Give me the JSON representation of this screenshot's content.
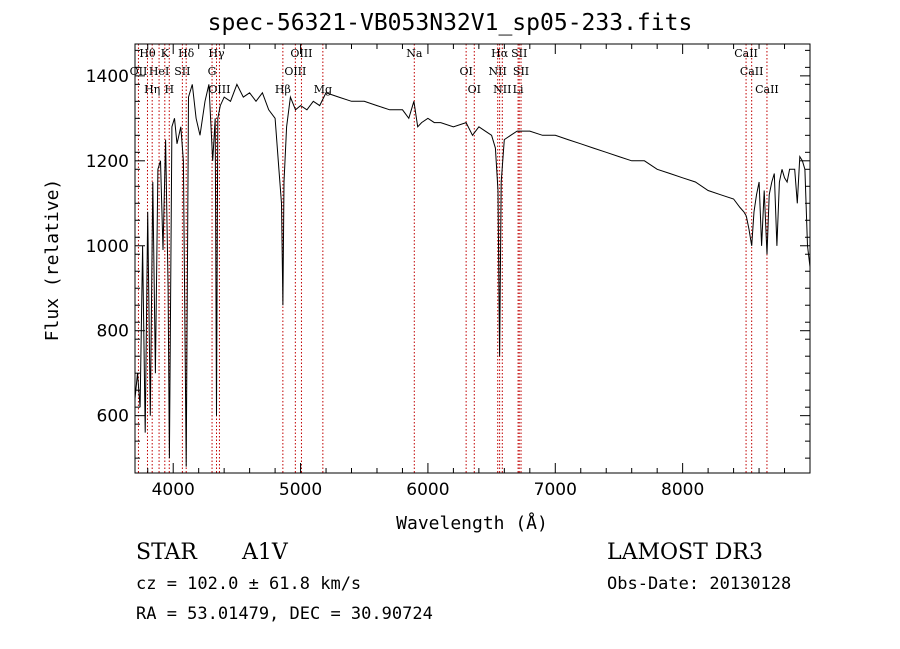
{
  "chart_data": {
    "type": "line",
    "title": "spec-56321-VB053N32V1_sp05-233.fits",
    "xlabel": "Wavelength (Å)",
    "ylabel": "Flux (relative)",
    "xlim": [
      3700,
      9000
    ],
    "ylim": [
      465,
      1475
    ],
    "xticks": [
      4000,
      5000,
      6000,
      7000,
      8000
    ],
    "yticks": [
      600,
      800,
      1000,
      1200,
      1400
    ],
    "grid": false,
    "series": [
      {
        "name": "spectrum",
        "x": [
          3700,
          3720,
          3740,
          3760,
          3780,
          3800,
          3820,
          3840,
          3860,
          3880,
          3900,
          3920,
          3940,
          3960,
          3970,
          3990,
          4010,
          4030,
          4060,
          4080,
          4102,
          4120,
          4150,
          4180,
          4210,
          4250,
          4280,
          4310,
          4330,
          4340,
          4350,
          4370,
          4400,
          4450,
          4500,
          4550,
          4600,
          4650,
          4700,
          4750,
          4800,
          4830,
          4850,
          4861,
          4870,
          4890,
          4920,
          4960,
          5000,
          5050,
          5100,
          5150,
          5200,
          5300,
          5400,
          5500,
          5600,
          5700,
          5800,
          5850,
          5890,
          5920,
          5950,
          6000,
          6050,
          6100,
          6200,
          6300,
          6350,
          6400,
          6450,
          6500,
          6530,
          6550,
          6563,
          6575,
          6600,
          6650,
          6700,
          6750,
          6800,
          6900,
          7000,
          7100,
          7200,
          7300,
          7400,
          7500,
          7600,
          7700,
          7800,
          7900,
          8000,
          8100,
          8200,
          8300,
          8400,
          8450,
          8480,
          8500,
          8520,
          8542,
          8560,
          8580,
          8600,
          8620,
          8640,
          8662,
          8680,
          8700,
          8720,
          8740,
          8760,
          8780,
          8800,
          8820,
          8840,
          8860,
          8880,
          8900,
          8920,
          8940,
          8960,
          8980,
          9000
        ],
        "values": [
          640,
          700,
          620,
          1000,
          560,
          1080,
          600,
          1150,
          700,
          1180,
          1200,
          990,
          1250,
          900,
          500,
          1280,
          1300,
          1240,
          1280,
          1200,
          480,
          1350,
          1380,
          1300,
          1260,
          1340,
          1380,
          1200,
          1300,
          600,
          1300,
          1330,
          1350,
          1340,
          1380,
          1350,
          1360,
          1340,
          1360,
          1320,
          1300,
          1180,
          1100,
          860,
          1150,
          1280,
          1350,
          1320,
          1330,
          1320,
          1340,
          1330,
          1360,
          1350,
          1340,
          1340,
          1330,
          1320,
          1320,
          1300,
          1340,
          1280,
          1290,
          1300,
          1290,
          1290,
          1280,
          1290,
          1260,
          1280,
          1270,
          1260,
          1230,
          1130,
          740,
          1150,
          1250,
          1260,
          1270,
          1270,
          1270,
          1260,
          1260,
          1250,
          1240,
          1230,
          1220,
          1210,
          1200,
          1200,
          1180,
          1170,
          1160,
          1150,
          1130,
          1120,
          1110,
          1090,
          1080,
          1070,
          1040,
          1000,
          1080,
          1120,
          1150,
          1000,
          1130,
          980,
          1120,
          1150,
          1170,
          1000,
          1150,
          1180,
          1160,
          1150,
          1180,
          1180,
          1180,
          1100,
          1210,
          1200,
          1180,
          1000,
          950
        ]
      }
    ],
    "lines": [
      {
        "label": "Hθ",
        "lambda": 3798
      },
      {
        "label": "OII",
        "lambda": 3727
      },
      {
        "label": "Hη",
        "lambda": 3835
      },
      {
        "label": "K",
        "lambda": 3934
      },
      {
        "label": "HeI",
        "lambda": 3889
      },
      {
        "label": "H",
        "lambda": 3969
      },
      {
        "label": "Hδ",
        "lambda": 4102
      },
      {
        "label": "SII",
        "lambda": 4072
      },
      {
        "label": "OIII",
        "lambda": 4363
      },
      {
        "label": "Hγ",
        "lambda": 4340
      },
      {
        "label": "G",
        "lambda": 4305
      },
      {
        "label": "Hβ",
        "lambda": 4861
      },
      {
        "label": "OIII",
        "lambda": 5007
      },
      {
        "label": "OIII",
        "lambda": 4959
      },
      {
        "label": "Mg",
        "lambda": 5175
      },
      {
        "label": "Na",
        "lambda": 5893
      },
      {
        "label": "OI",
        "lambda": 6300
      },
      {
        "label": "OI",
        "lambda": 6364
      },
      {
        "label": "Hα",
        "lambda": 6563
      },
      {
        "label": "NII",
        "lambda": 6548
      },
      {
        "label": "NII",
        "lambda": 6584
      },
      {
        "label": "SII",
        "lambda": 6717
      },
      {
        "label": "SII",
        "lambda": 6731
      },
      {
        "label": "Li",
        "lambda": 6708
      },
      {
        "label": "CaII",
        "lambda": 8498
      },
      {
        "label": "CaII",
        "lambda": 8542
      },
      {
        "label": "CaII",
        "lambda": 8662
      }
    ]
  },
  "info": {
    "object_type": "STAR",
    "subclass": "A1V",
    "survey": "LAMOST DR3",
    "cz": "cz = 102.0 ± 61.8 km/s",
    "obs_date": "Obs-Date: 20130128",
    "coords": "RA =  53.01479, DEC =  30.90724"
  }
}
